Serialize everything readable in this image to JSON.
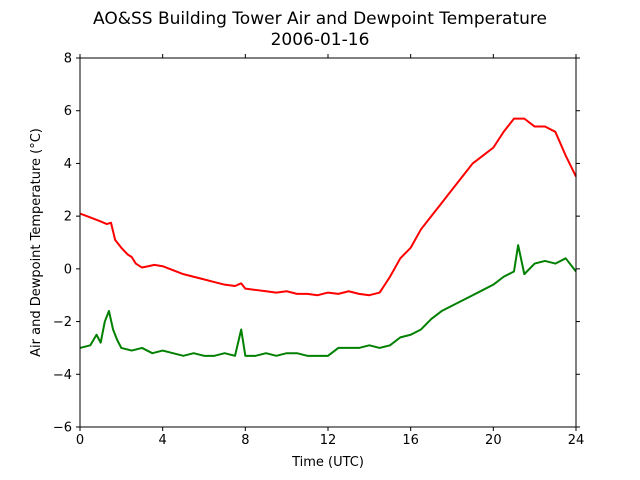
{
  "chart_data": {
    "type": "line",
    "title": "AO&SS Building Tower Air and Dewpoint Temperature",
    "subtitle": "2006-01-16",
    "xlabel": "Time (UTC)",
    "ylabel": "Air and Dewpoint Temperature (°C)",
    "xlim": [
      0,
      24
    ],
    "ylim": [
      -6,
      8
    ],
    "x_ticks": [
      0,
      4,
      8,
      12,
      16,
      20,
      24
    ],
    "y_ticks": [
      -6,
      -4,
      -2,
      0,
      2,
      4,
      6,
      8
    ],
    "grid": false,
    "legend": "none",
    "series": [
      {
        "color": "#ff0000",
        "x": [
          0.0,
          0.5,
          1.0,
          1.3,
          1.5,
          1.7,
          2.0,
          2.3,
          2.5,
          2.7,
          3.0,
          3.3,
          3.6,
          4.0,
          4.5,
          5.0,
          5.5,
          6.0,
          6.5,
          7.0,
          7.5,
          7.8,
          8.0,
          8.5,
          9.0,
          9.5,
          10.0,
          10.5,
          11.0,
          11.5,
          12.0,
          12.5,
          13.0,
          13.5,
          14.0,
          14.5,
          15.0,
          15.5,
          16.0,
          16.5,
          17.0,
          17.5,
          18.0,
          18.5,
          19.0,
          19.5,
          20.0,
          20.5,
          21.0,
          21.5,
          22.0,
          22.5,
          23.0,
          23.5,
          24.0
        ],
        "values": [
          2.1,
          1.95,
          1.8,
          1.7,
          1.75,
          1.1,
          0.8,
          0.55,
          0.45,
          0.2,
          0.05,
          0.1,
          0.15,
          0.1,
          -0.05,
          -0.2,
          -0.3,
          -0.4,
          -0.5,
          -0.6,
          -0.65,
          -0.55,
          -0.75,
          -0.8,
          -0.85,
          -0.9,
          -0.85,
          -0.95,
          -0.95,
          -1.0,
          -0.9,
          -0.95,
          -0.85,
          -0.95,
          -1.0,
          -0.9,
          -0.3,
          0.4,
          0.8,
          1.5,
          2.0,
          2.5,
          3.0,
          3.5,
          4.0,
          4.3,
          4.6,
          5.2,
          5.7,
          5.7,
          5.4,
          5.4,
          5.2,
          4.3,
          3.5
        ]
      },
      {
        "color": "#008000",
        "x": [
          0.0,
          0.5,
          0.8,
          1.0,
          1.2,
          1.4,
          1.6,
          1.8,
          2.0,
          2.5,
          3.0,
          3.5,
          4.0,
          4.5,
          5.0,
          5.5,
          6.0,
          6.5,
          7.0,
          7.5,
          7.8,
          8.0,
          8.5,
          9.0,
          9.5,
          10.0,
          10.5,
          11.0,
          11.5,
          12.0,
          12.5,
          13.0,
          13.5,
          14.0,
          14.5,
          15.0,
          15.5,
          16.0,
          16.5,
          17.0,
          17.5,
          18.0,
          18.5,
          19.0,
          19.5,
          20.0,
          20.5,
          21.0,
          21.2,
          21.5,
          22.0,
          22.5,
          23.0,
          23.5,
          24.0
        ],
        "values": [
          -3.0,
          -2.9,
          -2.5,
          -2.8,
          -2.0,
          -1.6,
          -2.3,
          -2.7,
          -3.0,
          -3.1,
          -3.0,
          -3.2,
          -3.1,
          -3.2,
          -3.3,
          -3.2,
          -3.3,
          -3.3,
          -3.2,
          -3.3,
          -2.3,
          -3.3,
          -3.3,
          -3.2,
          -3.3,
          -3.2,
          -3.2,
          -3.3,
          -3.3,
          -3.3,
          -3.0,
          -3.0,
          -3.0,
          -2.9,
          -3.0,
          -2.9,
          -2.6,
          -2.5,
          -2.3,
          -1.9,
          -1.6,
          -1.4,
          -1.2,
          -1.0,
          -0.8,
          -0.6,
          -0.3,
          -0.1,
          0.9,
          -0.2,
          0.2,
          0.3,
          0.2,
          0.4,
          -0.1
        ]
      }
    ]
  }
}
